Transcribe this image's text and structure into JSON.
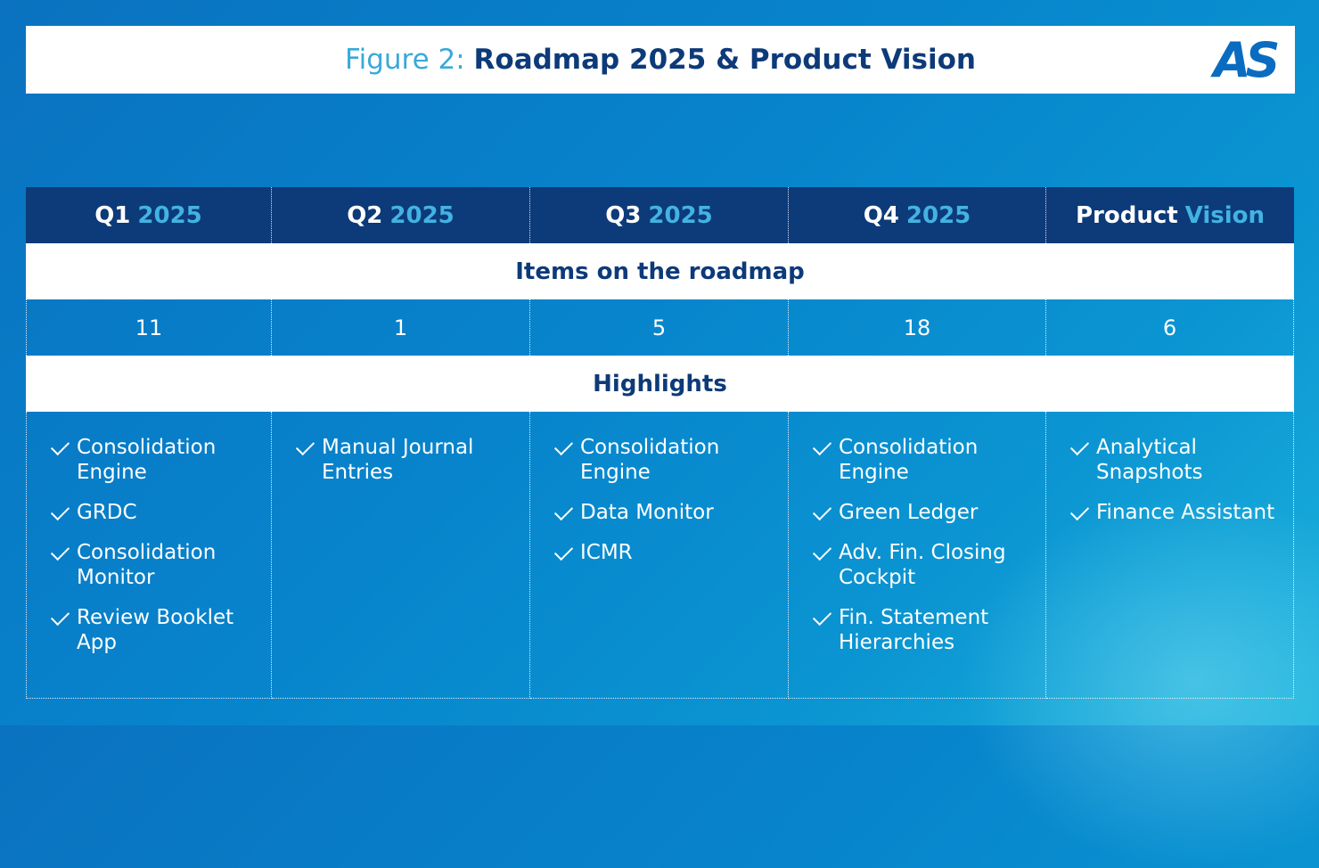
{
  "header": {
    "title_prefix": "Figure 2:",
    "title_main": "Roadmap 2025 & Product Vision",
    "logo_text": "AS"
  },
  "columns": [
    {
      "name": "Q1",
      "year": "2025",
      "count": "11",
      "items": [
        "Consolidation Engine",
        "GRDC",
        "Consolidation Monitor",
        "Review Booklet App"
      ]
    },
    {
      "name": "Q2",
      "year": "2025",
      "count": "1",
      "items": [
        "Manual Journal Entries"
      ]
    },
    {
      "name": "Q3",
      "year": "2025",
      "count": "5",
      "items": [
        "Consolidation Engine",
        "Data Monitor",
        "ICMR"
      ]
    },
    {
      "name": "Q4",
      "year": "2025",
      "count": "18",
      "items": [
        "Consolidation Engine",
        "Green Ledger",
        "Adv. Fin. Closing Cockpit",
        "Fin. Statement Hierarchies"
      ]
    },
    {
      "name": "Product",
      "year": "Vision",
      "count": "6",
      "items": [
        "Analytical Snapshots",
        "Finance Assistant"
      ]
    }
  ],
  "bands": {
    "items_label": "Items on the roadmap",
    "highlights_label": "Highlights"
  },
  "colors": {
    "navy": "#0d3a79",
    "accent": "#42b3e3",
    "background": "#0784cc",
    "logo": "#0a6cc0"
  },
  "icons": {
    "check": "check-icon"
  }
}
